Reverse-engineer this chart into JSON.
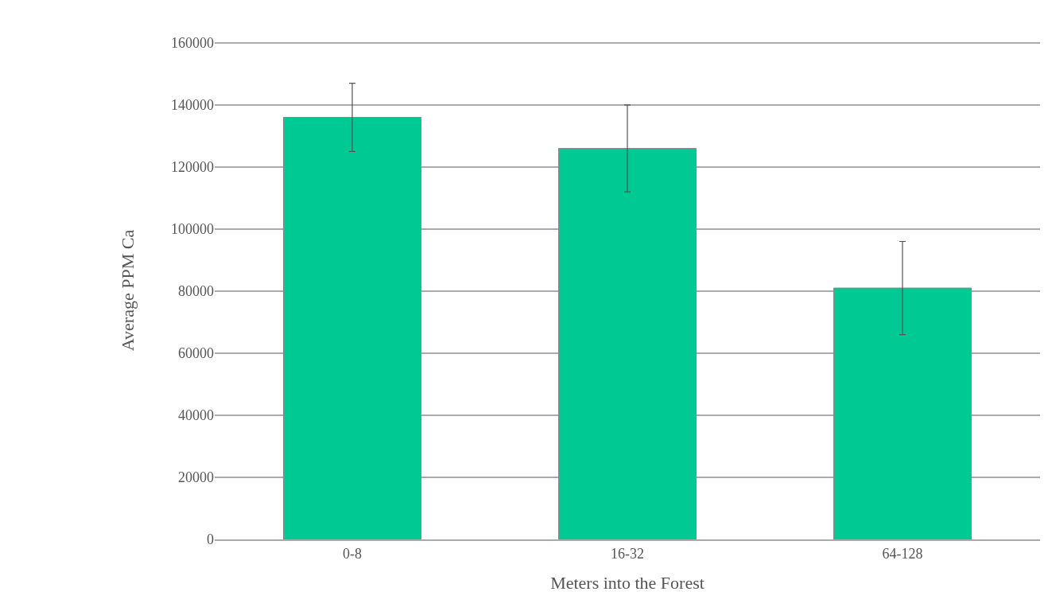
{
  "chart_data": {
    "type": "bar",
    "xlabel": "Meters into the Forest",
    "ylabel": "Average PPM Ca",
    "categories": [
      "0-8",
      "16-32",
      "64-128"
    ],
    "values": [
      136000,
      126000,
      81000
    ],
    "errors": [
      11000,
      14000,
      15000
    ],
    "color": "#00c993",
    "ylim": [
      0,
      160000
    ],
    "yticks": [
      0,
      20000,
      40000,
      60000,
      80000,
      100000,
      120000,
      140000,
      160000
    ],
    "grid": "y"
  }
}
